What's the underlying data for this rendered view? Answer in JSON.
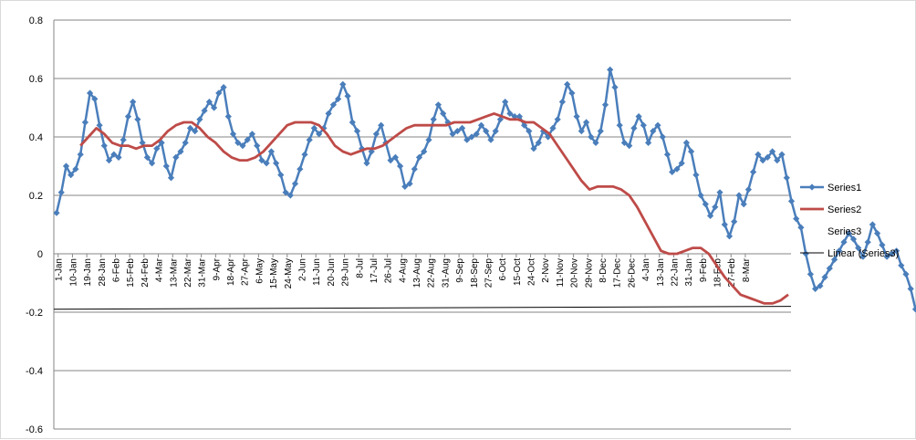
{
  "chart_data": {
    "type": "line",
    "title": "",
    "xlabel": "",
    "ylabel": "",
    "ylim": [
      -0.6,
      0.8
    ],
    "y_ticks": [
      "0.8",
      "0.6",
      "0.4",
      "0.2",
      "0",
      "-0.2",
      "-0.4",
      "-0.6"
    ],
    "y_tick_values": [
      0.8,
      0.6,
      0.4,
      0.2,
      0,
      -0.2,
      -0.4,
      -0.6
    ],
    "grid": true,
    "legend_position": "right",
    "x_tick_labels": [
      "1-Jan",
      "10-Jan",
      "19-Jan",
      "28-Jan",
      "6-Feb",
      "15-Feb",
      "24-Feb",
      "4-Mar",
      "13-Mar",
      "22-Mar",
      "31-Mar",
      "9-Apr",
      "18-Apr",
      "27-Apr",
      "6-May",
      "15-May",
      "24-May",
      "2-Jun",
      "11-Jun",
      "20-Jun",
      "29-Jun",
      "8-Jul",
      "17-Jul",
      "26-Jul",
      "4-Aug",
      "13-Aug",
      "22-Aug",
      "31-Aug",
      "9-Sep",
      "18-Sep",
      "27-Sep",
      "6-Oct",
      "15-Oct",
      "24-Oct",
      "2-Nov",
      "11-Nov",
      "20-Nov",
      "29-Nov",
      "8-Dec",
      "17-Dec",
      "26-Dec",
      "4-Jan",
      "13-Jan",
      "22-Jan",
      "31-Jan",
      "9-Feb",
      "18-Feb",
      "27-Feb",
      "8-Mar"
    ],
    "series": [
      {
        "name": "Series1",
        "color": "#4a7ebb",
        "marker": "diamond",
        "x_start": 0,
        "x_step": 3,
        "values": [
          0.14,
          0.21,
          0.3,
          0.27,
          0.29,
          0.34,
          0.45,
          0.55,
          0.53,
          0.44,
          0.37,
          0.32,
          0.34,
          0.33,
          0.39,
          0.47,
          0.52,
          0.46,
          0.38,
          0.33,
          0.31,
          0.36,
          0.38,
          0.3,
          0.26,
          0.33,
          0.35,
          0.38,
          0.43,
          0.42,
          0.46,
          0.49,
          0.52,
          0.5,
          0.55,
          0.57,
          0.47,
          0.41,
          0.38,
          0.37,
          0.39,
          0.41,
          0.37,
          0.32,
          0.31,
          0.35,
          0.31,
          0.27,
          0.21,
          0.2,
          0.24,
          0.29,
          0.34,
          0.39,
          0.43,
          0.41,
          0.43,
          0.48,
          0.51,
          0.53,
          0.58,
          0.54,
          0.45,
          0.42,
          0.36,
          0.31,
          0.35,
          0.41,
          0.44,
          0.38,
          0.32,
          0.33,
          0.3,
          0.23,
          0.24,
          0.29,
          0.33,
          0.35,
          0.39,
          0.46,
          0.51,
          0.48,
          0.45,
          0.41,
          0.42,
          0.43,
          0.39,
          0.4,
          0.41,
          0.44,
          0.42,
          0.39,
          0.42,
          0.46,
          0.52,
          0.48,
          0.47,
          0.47,
          0.44,
          0.42,
          0.36,
          0.38,
          0.42,
          0.4,
          0.43,
          0.46,
          0.52,
          0.58,
          0.55,
          0.47,
          0.42,
          0.45,
          0.4,
          0.38,
          0.42,
          0.51,
          0.63,
          0.57,
          0.44,
          0.38,
          0.37,
          0.43,
          0.47,
          0.44,
          0.38,
          0.42,
          0.44,
          0.4,
          0.34,
          0.28,
          0.29,
          0.31,
          0.38,
          0.35,
          0.27,
          0.2,
          0.17,
          0.13,
          0.16,
          0.21,
          0.1,
          0.06,
          0.11,
          0.2,
          0.17,
          0.22,
          0.28,
          0.34,
          0.32,
          0.33,
          0.35,
          0.32,
          0.34,
          0.26,
          0.18,
          0.12,
          0.09,
          0.0,
          -0.07,
          -0.12,
          -0.11,
          -0.08,
          -0.05,
          -0.02,
          0.01,
          0.04,
          0.07,
          0.05,
          0.02,
          -0.01,
          0.04,
          0.1,
          0.07,
          0.03,
          -0.01,
          0.0,
          0.01,
          -0.04,
          -0.07,
          -0.12,
          -0.19,
          -0.16,
          -0.1,
          -0.06,
          0.0,
          0.04,
          -0.02,
          -0.08,
          -0.17,
          -0.24,
          -0.23,
          -0.26,
          -0.28,
          -0.23,
          -0.17,
          -0.13,
          -0.1,
          -0.12,
          -0.15,
          -0.18,
          -0.2,
          -0.16,
          -0.13,
          -0.1,
          -0.12,
          -0.15,
          -0.18,
          -0.16,
          -0.14,
          -0.19,
          -0.26,
          -0.3,
          -0.34,
          -0.36
        ]
      },
      {
        "name": "Series2",
        "color": "#be4b48",
        "marker": "none",
        "points": [
          [
            15,
            0.37
          ],
          [
            20,
            0.4
          ],
          [
            25,
            0.43
          ],
          [
            30,
            0.41
          ],
          [
            35,
            0.38
          ],
          [
            40,
            0.37
          ],
          [
            45,
            0.37
          ],
          [
            50,
            0.36
          ],
          [
            55,
            0.37
          ],
          [
            60,
            0.37
          ],
          [
            65,
            0.39
          ],
          [
            70,
            0.42
          ],
          [
            75,
            0.44
          ],
          [
            80,
            0.45
          ],
          [
            85,
            0.45
          ],
          [
            90,
            0.43
          ],
          [
            95,
            0.4
          ],
          [
            100,
            0.38
          ],
          [
            105,
            0.35
          ],
          [
            110,
            0.33
          ],
          [
            115,
            0.32
          ],
          [
            120,
            0.32
          ],
          [
            125,
            0.33
          ],
          [
            130,
            0.35
          ],
          [
            135,
            0.38
          ],
          [
            140,
            0.41
          ],
          [
            145,
            0.44
          ],
          [
            150,
            0.45
          ],
          [
            155,
            0.45
          ],
          [
            160,
            0.45
          ],
          [
            165,
            0.44
          ],
          [
            170,
            0.41
          ],
          [
            175,
            0.37
          ],
          [
            180,
            0.35
          ],
          [
            185,
            0.34
          ],
          [
            190,
            0.35
          ],
          [
            195,
            0.36
          ],
          [
            200,
            0.36
          ],
          [
            205,
            0.37
          ],
          [
            210,
            0.39
          ],
          [
            215,
            0.41
          ],
          [
            220,
            0.43
          ],
          [
            225,
            0.44
          ],
          [
            230,
            0.44
          ],
          [
            235,
            0.44
          ],
          [
            240,
            0.44
          ],
          [
            245,
            0.44
          ],
          [
            250,
            0.45
          ],
          [
            255,
            0.45
          ],
          [
            260,
            0.45
          ],
          [
            265,
            0.46
          ],
          [
            270,
            0.47
          ],
          [
            275,
            0.48
          ],
          [
            280,
            0.47
          ],
          [
            285,
            0.46
          ],
          [
            290,
            0.46
          ],
          [
            295,
            0.45
          ],
          [
            300,
            0.45
          ],
          [
            305,
            0.43
          ],
          [
            310,
            0.41
          ],
          [
            315,
            0.37
          ],
          [
            320,
            0.33
          ],
          [
            325,
            0.29
          ],
          [
            330,
            0.25
          ],
          [
            335,
            0.22
          ],
          [
            340,
            0.23
          ],
          [
            345,
            0.23
          ],
          [
            350,
            0.23
          ],
          [
            355,
            0.22
          ],
          [
            360,
            0.2
          ],
          [
            365,
            0.16
          ],
          [
            370,
            0.11
          ],
          [
            375,
            0.06
          ],
          [
            380,
            0.01
          ],
          [
            385,
            0.0
          ],
          [
            390,
            0.0
          ],
          [
            395,
            0.01
          ],
          [
            400,
            0.02
          ],
          [
            405,
            0.02
          ],
          [
            410,
            0.0
          ],
          [
            415,
            -0.04
          ],
          [
            420,
            -0.08
          ],
          [
            425,
            -0.11
          ],
          [
            430,
            -0.14
          ],
          [
            435,
            -0.15
          ],
          [
            440,
            -0.16
          ],
          [
            445,
            -0.17
          ],
          [
            450,
            -0.17
          ],
          [
            455,
            -0.16
          ],
          [
            460,
            -0.14
          ]
        ]
      },
      {
        "name": "Series3",
        "color": "#98b954",
        "marker": "none",
        "points": []
      },
      {
        "name": "Linear (Series3)",
        "color": "#000000",
        "marker": "none",
        "trend": [
          [
            -0.19,
            -0.18
          ]
        ]
      }
    ]
  }
}
